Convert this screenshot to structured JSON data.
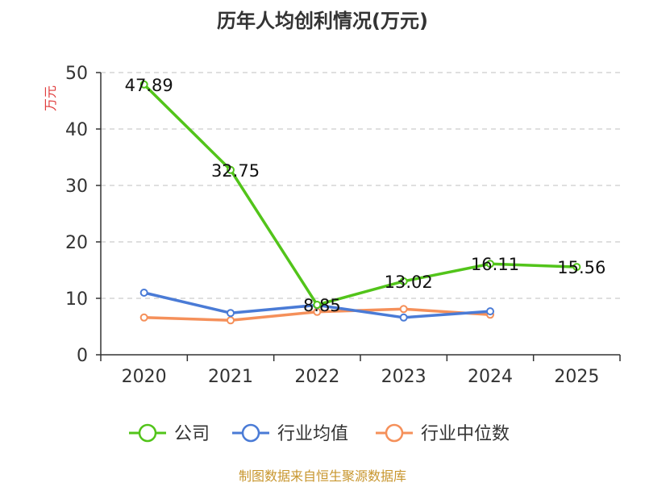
{
  "chart_data": {
    "type": "line",
    "title": "历年人均创利情况(万元)",
    "ylabel": "万元",
    "categories": [
      "2020",
      "2021",
      "2022",
      "2023",
      "2024",
      "2025"
    ],
    "ylim": [
      0,
      50
    ],
    "yticks": [
      0,
      10,
      20,
      30,
      40,
      50
    ],
    "grid": true,
    "legend_position": "bottom",
    "series": [
      {
        "name": "公司",
        "color": "#52c41a",
        "values": [
          47.89,
          32.75,
          8.85,
          13.02,
          16.11,
          15.56
        ],
        "labels": [
          "47.89",
          "32.75",
          "8.85",
          "13.02",
          "16.11",
          "15.56"
        ]
      },
      {
        "name": "行业均值",
        "color": "#4a7bd6",
        "values": [
          11.0,
          7.4,
          8.8,
          6.6,
          7.7,
          null
        ]
      },
      {
        "name": "行业中位数",
        "color": "#f5905a",
        "values": [
          6.6,
          6.1,
          7.6,
          8.1,
          7.1,
          null
        ]
      }
    ]
  },
  "source_text": "制图数据来自恒生聚源数据库",
  "colors": {
    "axis": "#333333",
    "grid": "#cccccc",
    "ylabel": "#e03c3c",
    "source": "#c8962e"
  }
}
